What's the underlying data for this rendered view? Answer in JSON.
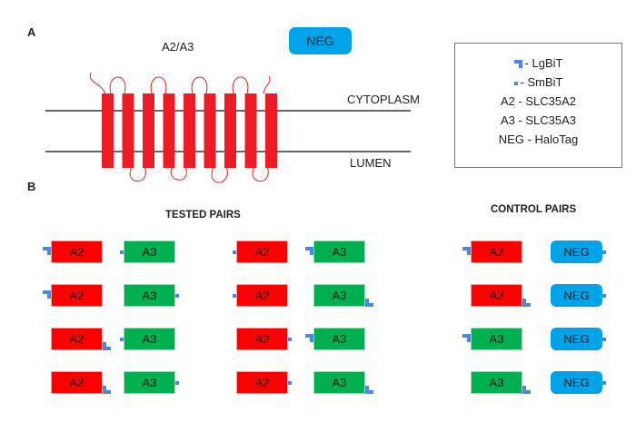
{
  "panel_a": {
    "label": "A",
    "protein_label": "A2/A3",
    "neg_badge": "NEG",
    "cytoplasm": "CYTOPLASM",
    "lumen": "LUMEN",
    "helix_count": 9
  },
  "legend": {
    "items": [
      {
        "icon": "lgbit",
        "text": "- LgBiT"
      },
      {
        "icon": "smbit",
        "text": "- SmBiT"
      },
      {
        "icon": "",
        "text": "A2 - SLC35A2"
      },
      {
        "icon": "",
        "text": "A3 - SLC35A3"
      },
      {
        "icon": "",
        "text": "NEG - HaloTag"
      }
    ]
  },
  "panel_b": {
    "label": "B",
    "tested_title": "TESTED PAIRS",
    "control_title": "CONTROL PAIRS",
    "columns": [
      {
        "group": "tested",
        "rows": [
          [
            {
              "label": "A2",
              "tag": "lg",
              "side": "left"
            },
            {
              "label": "A3",
              "tag": "sm",
              "side": "left"
            }
          ],
          [
            {
              "label": "A2",
              "tag": "lg",
              "side": "left"
            },
            {
              "label": "A3",
              "tag": "sm",
              "side": "right"
            }
          ],
          [
            {
              "label": "A2",
              "tag": "lg",
              "side": "right"
            },
            {
              "label": "A3",
              "tag": "sm",
              "side": "left"
            }
          ],
          [
            {
              "label": "A2",
              "tag": "lg",
              "side": "right"
            },
            {
              "label": "A3",
              "tag": "sm",
              "side": "right"
            }
          ]
        ]
      },
      {
        "group": "tested",
        "rows": [
          [
            {
              "label": "A2",
              "tag": "sm",
              "side": "left"
            },
            {
              "label": "A3",
              "tag": "lg",
              "side": "left"
            }
          ],
          [
            {
              "label": "A2",
              "tag": "sm",
              "side": "left"
            },
            {
              "label": "A3",
              "tag": "lg",
              "side": "right"
            }
          ],
          [
            {
              "label": "A2",
              "tag": "sm",
              "side": "right"
            },
            {
              "label": "A3",
              "tag": "lg",
              "side": "left"
            }
          ],
          [
            {
              "label": "A2",
              "tag": "sm",
              "side": "right"
            },
            {
              "label": "A3",
              "tag": "lg",
              "side": "right"
            }
          ]
        ]
      },
      {
        "group": "control",
        "rows": [
          [
            {
              "label": "A2",
              "tag": "lg",
              "side": "left"
            },
            {
              "label": "NEG",
              "tag": "sm",
              "side": "right"
            }
          ],
          [
            {
              "label": "A2",
              "tag": "lg",
              "side": "right"
            },
            {
              "label": "NEG",
              "tag": "sm",
              "side": "right"
            }
          ],
          [
            {
              "label": "A3",
              "tag": "lg",
              "side": "left"
            },
            {
              "label": "NEG",
              "tag": "sm",
              "side": "right"
            }
          ],
          [
            {
              "label": "A3",
              "tag": "lg",
              "side": "right"
            },
            {
              "label": "NEG",
              "tag": "sm",
              "side": "right"
            }
          ]
        ]
      }
    ]
  },
  "colors": {
    "A2": "#fe0000",
    "A3": "#00b050",
    "NEG": "#00a2e8",
    "tag": "#4a86e8"
  }
}
